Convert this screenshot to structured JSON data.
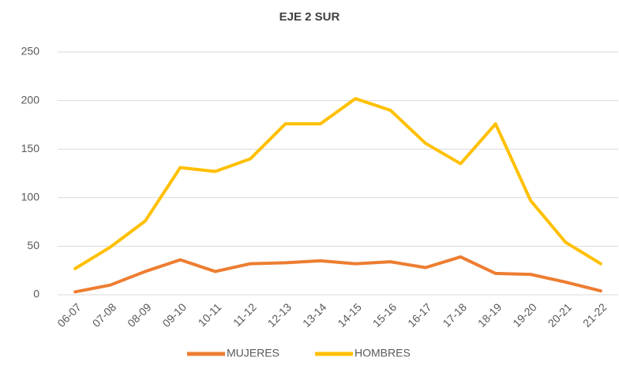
{
  "chart_data": {
    "type": "line",
    "title": "EJE 2 SUR",
    "categories": [
      "06-07",
      "07-08",
      "08-09",
      "09-10",
      "10-11",
      "11-12",
      "12-13",
      "13-14",
      "14-15",
      "15-16",
      "16-17",
      "17-18",
      "18-19",
      "19-20",
      "20-21",
      "21-22"
    ],
    "series": [
      {
        "name": "MUJERES",
        "color": "#ed7d31",
        "values": [
          3,
          10,
          24,
          36,
          24,
          32,
          33,
          35,
          32,
          34,
          28,
          39,
          22,
          21,
          13,
          4
        ]
      },
      {
        "name": "HOMBRES",
        "color": "#ffc000",
        "values": [
          27,
          49,
          76,
          131,
          127,
          140,
          176,
          176,
          202,
          190,
          156,
          135,
          176,
          97,
          54,
          32
        ]
      }
    ],
    "ylim": [
      0,
      250
    ],
    "yticks": [
      0,
      50,
      100,
      150,
      200,
      250
    ],
    "grid": true,
    "legend": "bottom"
  }
}
